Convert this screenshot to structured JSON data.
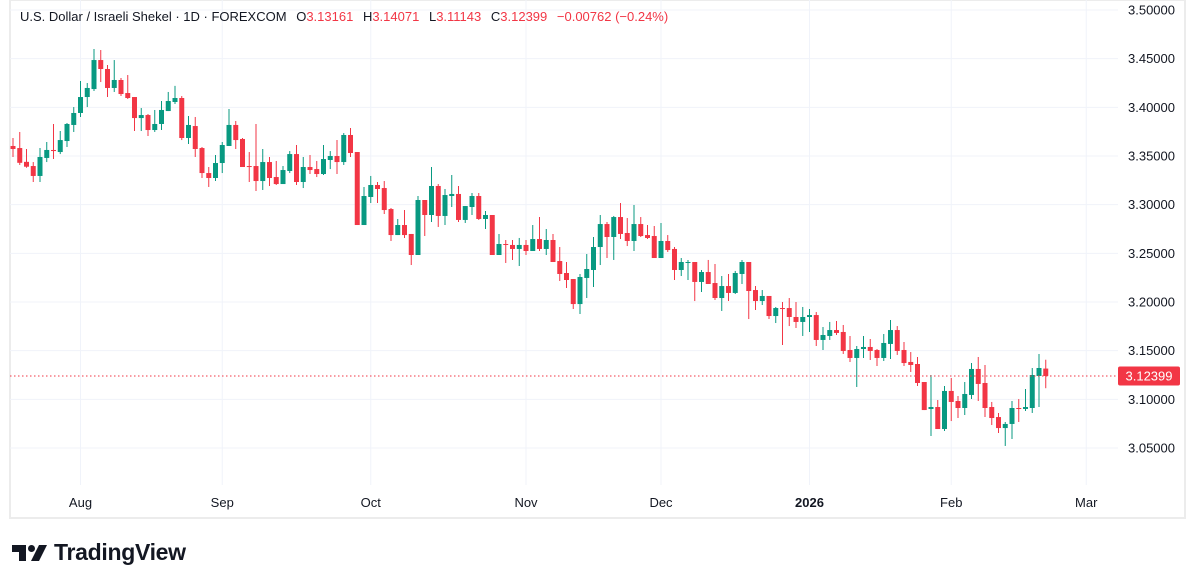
{
  "header": {
    "symbol_title": "U.S. Dollar / Israeli Shekel · 1D · FOREXCOM",
    "open_label": "O",
    "open_value": "3.13161",
    "high_label": "H",
    "high_value": "3.14071",
    "low_label": "L",
    "low_value": "3.11143",
    "close_label": "C",
    "close_value": "3.12399",
    "change": "−0.00762 (−0.24%)"
  },
  "last_price_label": "3.12399",
  "brand": {
    "name": "TradingView"
  },
  "colors": {
    "up": "#089981",
    "down": "#f23645",
    "grid": "#f0f3fa",
    "text": "#131722"
  },
  "chart_data": {
    "type": "candlestick",
    "symbol": "USDILS",
    "interval": "1D",
    "ylim": [
      3.0,
      3.5
    ],
    "y_ticks": [
      "3.05000",
      "3.10000",
      "3.15000",
      "3.20000",
      "3.25000",
      "3.30000",
      "3.35000",
      "3.40000",
      "3.45000",
      "3.50000"
    ],
    "x_ticks": [
      {
        "label": "Aug",
        "date": "2025-08-01",
        "bold": false
      },
      {
        "label": "Sep",
        "date": "2025-09-01",
        "bold": false
      },
      {
        "label": "Oct",
        "date": "2025-10-01",
        "bold": false
      },
      {
        "label": "Nov",
        "date": "2025-11-03",
        "bold": false
      },
      {
        "label": "Dec",
        "date": "2025-12-01",
        "bold": false
      },
      {
        "label": "2026",
        "date": "2026-01-02",
        "bold": true
      },
      {
        "label": "Feb",
        "date": "2026-02-02",
        "bold": false
      },
      {
        "label": "Mar",
        "date": "2026-03-02",
        "bold": false
      }
    ],
    "grid": true,
    "last_price": 3.12399,
    "columns": [
      "date",
      "open",
      "high",
      "low",
      "close"
    ],
    "candles": [
      [
        "2025-07-18",
        3.3603,
        3.3685,
        3.349,
        3.3572
      ],
      [
        "2025-07-21",
        3.3582,
        3.3747,
        3.3408,
        3.343
      ],
      [
        "2025-07-22",
        3.344,
        3.3572,
        3.338,
        3.339
      ],
      [
        "2025-07-23",
        3.3397,
        3.3438,
        3.3233,
        3.3295
      ],
      [
        "2025-07-24",
        3.3295,
        3.3582,
        3.3233,
        3.349
      ],
      [
        "2025-07-25",
        3.348,
        3.3644,
        3.3438,
        3.3562
      ],
      [
        "2025-07-28",
        3.3562,
        3.3829,
        3.3469,
        3.3551
      ],
      [
        "2025-07-29",
        3.3541,
        3.3757,
        3.352,
        3.3664
      ],
      [
        "2025-07-30",
        3.3654,
        3.3839,
        3.3593,
        3.3829
      ],
      [
        "2025-07-31",
        3.3819,
        3.4003,
        3.3747,
        3.3942
      ],
      [
        "2025-08-01",
        3.3942,
        3.4271,
        3.3901,
        3.4106
      ],
      [
        "2025-08-04",
        3.4106,
        3.425,
        3.4003,
        3.4199
      ],
      [
        "2025-08-05",
        3.4188,
        3.4599,
        3.4168,
        3.4486
      ],
      [
        "2025-08-06",
        3.4486,
        3.4589,
        3.426,
        3.4394
      ],
      [
        "2025-08-07",
        3.4394,
        3.4435,
        3.4106,
        3.4199
      ],
      [
        "2025-08-08",
        3.4199,
        3.4486,
        3.4158,
        3.4281
      ],
      [
        "2025-08-11",
        3.4281,
        3.4301,
        3.4116,
        3.4137
      ],
      [
        "2025-08-12",
        3.4147,
        3.4332,
        3.4086,
        3.4096
      ],
      [
        "2025-08-13",
        3.4106,
        3.4106,
        3.3757,
        3.389
      ],
      [
        "2025-08-14",
        3.389,
        3.3993,
        3.3757,
        3.3921
      ],
      [
        "2025-08-15",
        3.3921,
        3.3931,
        3.3706,
        3.3767
      ],
      [
        "2025-08-18",
        3.3767,
        3.3973,
        3.3747,
        3.3829
      ],
      [
        "2025-08-19",
        3.3829,
        3.4065,
        3.3767,
        3.3973
      ],
      [
        "2025-08-20",
        3.3962,
        3.4158,
        3.3962,
        3.4065
      ],
      [
        "2025-08-21",
        3.4055,
        3.422,
        3.4034,
        3.4096
      ],
      [
        "2025-08-22",
        3.4096,
        3.4116,
        3.3664,
        3.3685
      ],
      [
        "2025-08-25",
        3.3685,
        3.3911,
        3.3623,
        3.3819
      ],
      [
        "2025-08-26",
        3.3808,
        3.3901,
        3.349,
        3.3572
      ],
      [
        "2025-08-27",
        3.3582,
        3.3593,
        3.3274,
        3.3325
      ],
      [
        "2025-08-28",
        3.3325,
        3.3387,
        3.3182,
        3.3274
      ],
      [
        "2025-08-29",
        3.3274,
        3.351,
        3.3243,
        3.3428
      ],
      [
        "2025-09-01",
        3.3428,
        3.3644,
        3.3325,
        3.3613
      ],
      [
        "2025-09-02",
        3.3603,
        3.3983,
        3.3603,
        3.3819
      ],
      [
        "2025-09-03",
        3.3819,
        3.386,
        3.3572,
        3.3664
      ],
      [
        "2025-09-04",
        3.3675,
        3.3685,
        3.3387,
        3.3387
      ],
      [
        "2025-09-05",
        3.3397,
        3.3541,
        3.3233,
        3.3387
      ],
      [
        "2025-09-08",
        3.3397,
        3.3829,
        3.314,
        3.3243
      ],
      [
        "2025-09-09",
        3.3243,
        3.3572,
        3.3151,
        3.3438
      ],
      [
        "2025-09-10",
        3.3438,
        3.349,
        3.3192,
        3.3274
      ],
      [
        "2025-09-11",
        3.3284,
        3.3449,
        3.3202,
        3.3212
      ],
      [
        "2025-09-12",
        3.3212,
        3.3397,
        3.3212,
        3.3356
      ],
      [
        "2025-09-15",
        3.3346,
        3.3551,
        3.3325,
        3.352
      ],
      [
        "2025-09-16",
        3.352,
        3.3613,
        3.3202,
        3.3233
      ],
      [
        "2025-09-17",
        3.3233,
        3.349,
        3.3171,
        3.3387
      ],
      [
        "2025-09-18",
        3.3387,
        3.351,
        3.3315,
        3.3356
      ],
      [
        "2025-09-19",
        3.3366,
        3.3449,
        3.3284,
        3.3315
      ],
      [
        "2025-09-22",
        3.3315,
        3.3613,
        3.3305,
        3.3469
      ],
      [
        "2025-09-23",
        3.3459,
        3.3551,
        3.3366,
        3.35
      ],
      [
        "2025-09-24",
        3.35,
        3.3664,
        3.3315,
        3.3438
      ],
      [
        "2025-09-25",
        3.3438,
        3.3736,
        3.3408,
        3.3716
      ],
      [
        "2025-09-26",
        3.3716,
        3.3788,
        3.349,
        3.3531
      ],
      [
        "2025-09-29",
        3.3541,
        3.3541,
        3.2791,
        3.2791
      ],
      [
        "2025-09-30",
        3.2791,
        3.3182,
        3.2791,
        3.3089
      ],
      [
        "2025-10-01",
        3.3079,
        3.3295,
        3.3017,
        3.3202
      ],
      [
        "2025-10-02",
        3.3202,
        3.3233,
        3.3017,
        3.3161
      ],
      [
        "2025-10-03",
        3.3171,
        3.3243,
        3.2904,
        3.2945
      ],
      [
        "2025-10-06",
        3.2955,
        3.2966,
        3.2627,
        3.2688
      ],
      [
        "2025-10-07",
        3.2688,
        3.2853,
        3.2688,
        3.2791
      ],
      [
        "2025-10-08",
        3.2791,
        3.2945,
        3.2658,
        3.2688
      ],
      [
        "2025-10-09",
        3.2699,
        3.2699,
        3.238,
        3.2483
      ],
      [
        "2025-10-10",
        3.2483,
        3.3089,
        3.2483,
        3.3048
      ],
      [
        "2025-10-13",
        3.3048,
        3.3048,
        3.2678,
        3.2894
      ],
      [
        "2025-10-14",
        3.2894,
        3.3387,
        3.2822,
        3.3192
      ],
      [
        "2025-10-15",
        3.3192,
        3.3212,
        3.2771,
        3.2884
      ],
      [
        "2025-10-16",
        3.2884,
        3.3161,
        3.2791,
        3.3099
      ],
      [
        "2025-10-17",
        3.3089,
        3.3305,
        3.2976,
        3.311
      ],
      [
        "2025-10-20",
        3.311,
        3.3192,
        3.2822,
        3.2843
      ],
      [
        "2025-10-21",
        3.2843,
        3.2986,
        3.2812,
        3.2986
      ],
      [
        "2025-10-22",
        3.2976,
        3.312,
        3.2894,
        3.3089
      ],
      [
        "2025-10-23",
        3.3089,
        3.312,
        3.2843,
        3.2853
      ],
      [
        "2025-10-24",
        3.2853,
        3.2935,
        3.275,
        3.2894
      ],
      [
        "2025-10-27",
        3.2894,
        3.2894,
        3.2483,
        3.2483
      ],
      [
        "2025-10-28",
        3.2483,
        3.2699,
        3.2483,
        3.2596
      ],
      [
        "2025-10-29",
        3.2596,
        3.2637,
        3.2401,
        3.2586
      ],
      [
        "2025-10-30",
        3.2586,
        3.2637,
        3.2432,
        3.2545
      ],
      [
        "2025-10-31",
        3.2545,
        3.2658,
        3.237,
        3.2586
      ],
      [
        "2025-11-03",
        3.2586,
        3.2637,
        3.2483,
        3.2524
      ],
      [
        "2025-11-04",
        3.2524,
        3.2791,
        3.2524,
        3.2647
      ],
      [
        "2025-11-05",
        3.2647,
        3.2873,
        3.2524,
        3.2545
      ],
      [
        "2025-11-06",
        3.2545,
        3.275,
        3.2483,
        3.2637
      ],
      [
        "2025-11-07",
        3.2637,
        3.2699,
        3.2411,
        3.2411
      ],
      [
        "2025-11-10",
        3.2421,
        3.2565,
        3.2216,
        3.2288
      ],
      [
        "2025-11-11",
        3.2298,
        3.2411,
        3.2144,
        3.2226
      ],
      [
        "2025-11-12",
        3.2236,
        3.2236,
        3.1928,
        3.1979
      ],
      [
        "2025-11-13",
        3.1979,
        3.2288,
        3.1877,
        3.2257
      ],
      [
        "2025-11-14",
        3.2247,
        3.2493,
        3.2041,
        3.2339
      ],
      [
        "2025-11-17",
        3.2329,
        3.2668,
        3.2154,
        3.2565
      ],
      [
        "2025-11-18",
        3.2565,
        3.2894,
        3.238,
        3.2801
      ],
      [
        "2025-11-19",
        3.2801,
        3.2822,
        3.2452,
        3.2668
      ],
      [
        "2025-11-20",
        3.2668,
        3.2884,
        3.2432,
        3.2873
      ],
      [
        "2025-11-21",
        3.2873,
        3.3017,
        3.2647,
        3.2699
      ],
      [
        "2025-11-24",
        3.2709,
        3.2863,
        3.2575,
        3.2627
      ],
      [
        "2025-11-25",
        3.2627,
        3.2997,
        3.2524,
        3.2801
      ],
      [
        "2025-11-26",
        3.2801,
        3.2873,
        3.2668,
        3.2678
      ],
      [
        "2025-11-27",
        3.2688,
        3.2791,
        3.2647,
        3.2658
      ],
      [
        "2025-11-28",
        3.2678,
        3.2781,
        3.2452,
        3.2452
      ],
      [
        "2025-12-01",
        3.2452,
        3.2812,
        3.2452,
        3.2627
      ],
      [
        "2025-12-02",
        3.2627,
        3.2688,
        3.2514,
        3.2534
      ],
      [
        "2025-12-03",
        3.2545,
        3.2565,
        3.2226,
        3.2329
      ],
      [
        "2025-12-04",
        3.2329,
        3.2452,
        3.2267,
        3.2411
      ],
      [
        "2025-12-05",
        3.2401,
        3.2432,
        3.2226,
        3.2411
      ],
      [
        "2025-12-08",
        3.2411,
        3.2411,
        3.201,
        3.2206
      ],
      [
        "2025-12-09",
        3.2206,
        3.2329,
        3.2103,
        3.2308
      ],
      [
        "2025-12-10",
        3.2308,
        3.2432,
        3.2185,
        3.2185
      ],
      [
        "2025-12-11",
        3.2195,
        3.2391,
        3.2021,
        3.2041
      ],
      [
        "2025-12-12",
        3.2041,
        3.2267,
        3.1908,
        3.2164
      ],
      [
        "2025-12-15",
        3.2164,
        3.2288,
        3.201,
        3.2093
      ],
      [
        "2025-12-16",
        3.2093,
        3.2319,
        3.2082,
        3.2298
      ],
      [
        "2025-12-17",
        3.2288,
        3.2432,
        3.2185,
        3.2411
      ],
      [
        "2025-12-18",
        3.2411,
        3.2411,
        3.1825,
        3.2113
      ],
      [
        "2025-12-19",
        3.2123,
        3.2164,
        3.1918,
        3.201
      ],
      [
        "2025-12-22",
        3.201,
        3.2123,
        3.1969,
        3.2062
      ],
      [
        "2025-12-23",
        3.2062,
        3.2062,
        3.1825,
        3.1856
      ],
      [
        "2025-12-24",
        3.1856,
        3.1949,
        3.1784,
        3.1938
      ],
      [
        "2025-12-26",
        3.1938,
        3.2,
        3.1558,
        3.1928
      ],
      [
        "2025-12-29",
        3.1938,
        3.2041,
        3.1753,
        3.1846
      ],
      [
        "2025-12-30",
        3.1846,
        3.2,
        3.1733,
        3.1795
      ],
      [
        "2025-12-31",
        3.1795,
        3.1949,
        3.1651,
        3.1846
      ],
      [
        "2026-01-02",
        3.1846,
        3.1928,
        3.1692,
        3.1866
      ],
      [
        "2026-01-05",
        3.1866,
        3.1897,
        3.1548,
        3.161
      ],
      [
        "2026-01-06",
        3.161,
        3.1743,
        3.1507,
        3.1661
      ],
      [
        "2026-01-07",
        3.1651,
        3.1795,
        3.161,
        3.1712
      ],
      [
        "2026-01-08",
        3.1712,
        3.1805,
        3.1661,
        3.1682
      ],
      [
        "2026-01-09",
        3.1692,
        3.1764,
        3.1466,
        3.1497
      ],
      [
        "2026-01-12",
        3.1507,
        3.1651,
        3.1384,
        3.1425
      ],
      [
        "2026-01-13",
        3.1425,
        3.1548,
        3.1127,
        3.1517
      ],
      [
        "2026-01-14",
        3.1517,
        3.1651,
        3.1425,
        3.1538
      ],
      [
        "2026-01-15",
        3.1538,
        3.162,
        3.1404,
        3.1497
      ],
      [
        "2026-01-16",
        3.1507,
        3.1517,
        3.1342,
        3.1425
      ],
      [
        "2026-01-19",
        3.1425,
        3.1671,
        3.1394,
        3.1579
      ],
      [
        "2026-01-20",
        3.1569,
        3.1815,
        3.1414,
        3.1712
      ],
      [
        "2026-01-21",
        3.1712,
        3.1753,
        3.1456,
        3.1497
      ],
      [
        "2026-01-22",
        3.1507,
        3.1589,
        3.1342,
        3.1373
      ],
      [
        "2026-01-23",
        3.1384,
        3.1486,
        3.1281,
        3.1353
      ],
      [
        "2026-01-26",
        3.1363,
        3.1435,
        3.1137,
        3.1168
      ],
      [
        "2026-01-27",
        3.1178,
        3.1178,
        3.089,
        3.089
      ],
      [
        "2026-01-28",
        3.0901,
        3.125,
        3.0623,
        3.0921
      ],
      [
        "2026-01-29",
        3.0921,
        3.0993,
        3.0695,
        3.0695
      ],
      [
        "2026-01-30",
        3.0695,
        3.1137,
        3.0675,
        3.1086
      ],
      [
        "2026-02-02",
        3.1086,
        3.1219,
        3.0777,
        3.0973
      ],
      [
        "2026-02-03",
        3.0983,
        3.1034,
        3.0808,
        3.0911
      ],
      [
        "2026-02-04",
        3.0911,
        3.1178,
        3.0839,
        3.1055
      ],
      [
        "2026-02-05",
        3.1045,
        3.1373,
        3.1003,
        3.1312
      ],
      [
        "2026-02-06",
        3.1312,
        3.1435,
        3.0983,
        3.1158
      ],
      [
        "2026-02-09",
        3.1168,
        3.1353,
        3.0818,
        3.0911
      ],
      [
        "2026-02-10",
        3.0921,
        3.0973,
        3.0736,
        3.0808
      ],
      [
        "2026-02-11",
        3.0818,
        3.086,
        3.0654,
        3.0705
      ],
      [
        "2026-02-12",
        3.0705,
        3.0767,
        3.0521,
        3.0747
      ],
      [
        "2026-02-13",
        3.0747,
        3.0983,
        3.0592,
        3.0911
      ],
      [
        "2026-02-16",
        3.0911,
        3.1003,
        3.0767,
        3.0901
      ],
      [
        "2026-02-17",
        3.0901,
        3.1106,
        3.088,
        3.0921
      ],
      [
        "2026-02-18",
        3.0911,
        3.1322,
        3.086,
        3.125
      ],
      [
        "2026-02-19",
        3.124,
        3.1466,
        3.0921,
        3.1322
      ],
      [
        "2026-02-20",
        3.13161,
        3.14071,
        3.11143,
        3.12399
      ]
    ]
  }
}
